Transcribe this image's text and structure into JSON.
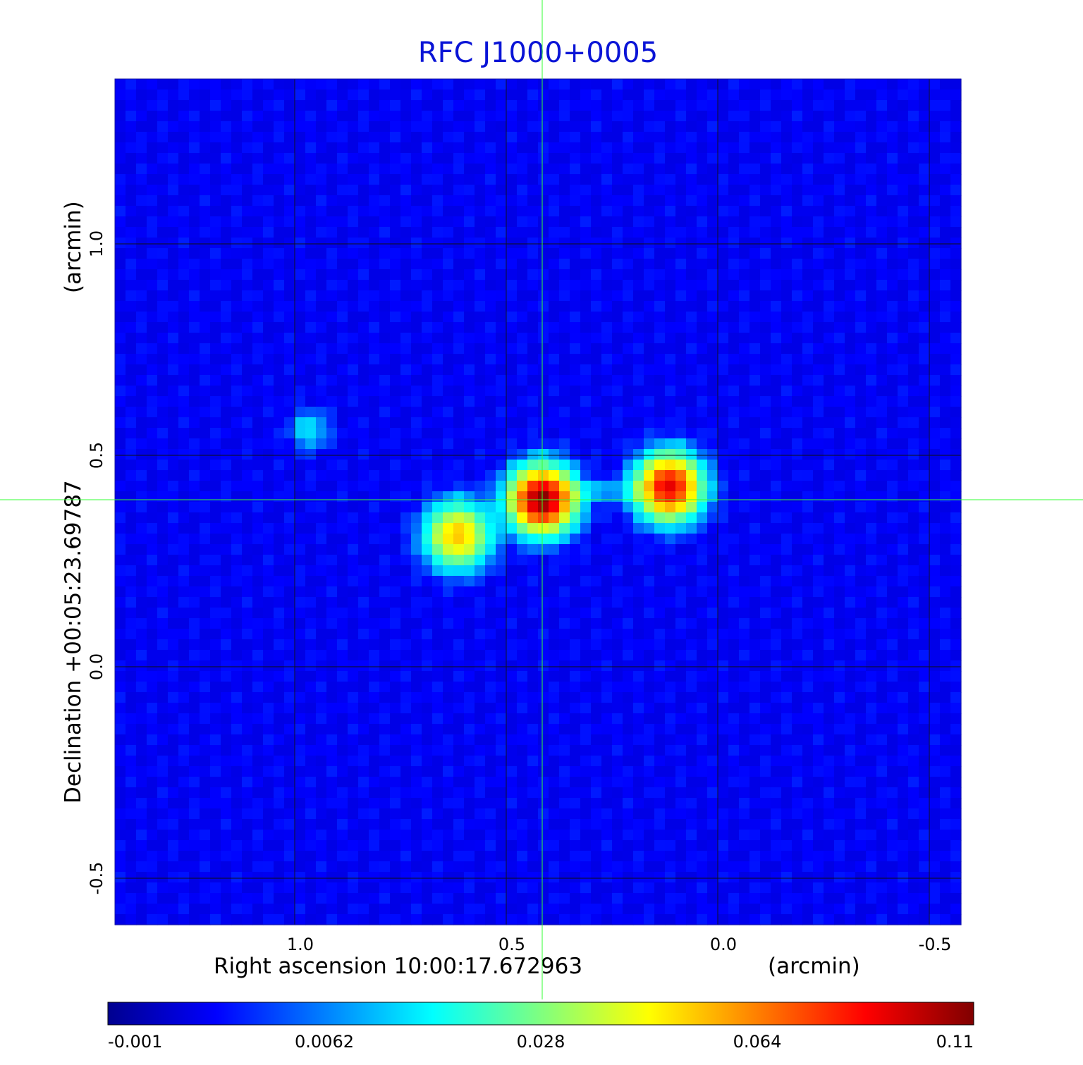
{
  "chart_data": {
    "type": "heatmap",
    "title": "RFC J1000+0005",
    "xlabel": "Right ascension  10:00:17.672963",
    "xunit": "(arcmin)",
    "ylabel": "Declination  +00:05:23.69787",
    "yunit": "(arcmin)",
    "xlim": [
      1.425,
      -0.575
    ],
    "ylim": [
      -0.61,
      1.39
    ],
    "x_ticks": [
      1.0,
      0.5,
      0.0,
      -0.5
    ],
    "x_tick_labels": [
      "1.0",
      "0.5",
      "0.0",
      "-0.5"
    ],
    "y_ticks": [
      1.0,
      0.5,
      0.0,
      -0.5
    ],
    "y_tick_labels": [
      "1.0",
      "0.5",
      "0.0",
      "-0.5"
    ],
    "grid": true,
    "crosshair": {
      "x": 0.415,
      "y": 0.395,
      "color": "#33ff33"
    },
    "colormap": "jet",
    "colorbar": {
      "placement": "bottom",
      "ticks": [
        "-0.001",
        "0.0062",
        "0.028",
        "0.064",
        "0.11"
      ],
      "min": -0.001,
      "max": 0.11
    },
    "background_level": -0.0005,
    "sources": [
      {
        "x": 0.415,
        "y": 0.395,
        "peak": 0.11
      },
      {
        "x": 0.115,
        "y": 0.425,
        "peak": 0.09
      },
      {
        "x": 0.615,
        "y": 0.31,
        "peak": 0.05
      },
      {
        "x": 0.965,
        "y": 0.56,
        "peak": 0.009
      }
    ]
  }
}
